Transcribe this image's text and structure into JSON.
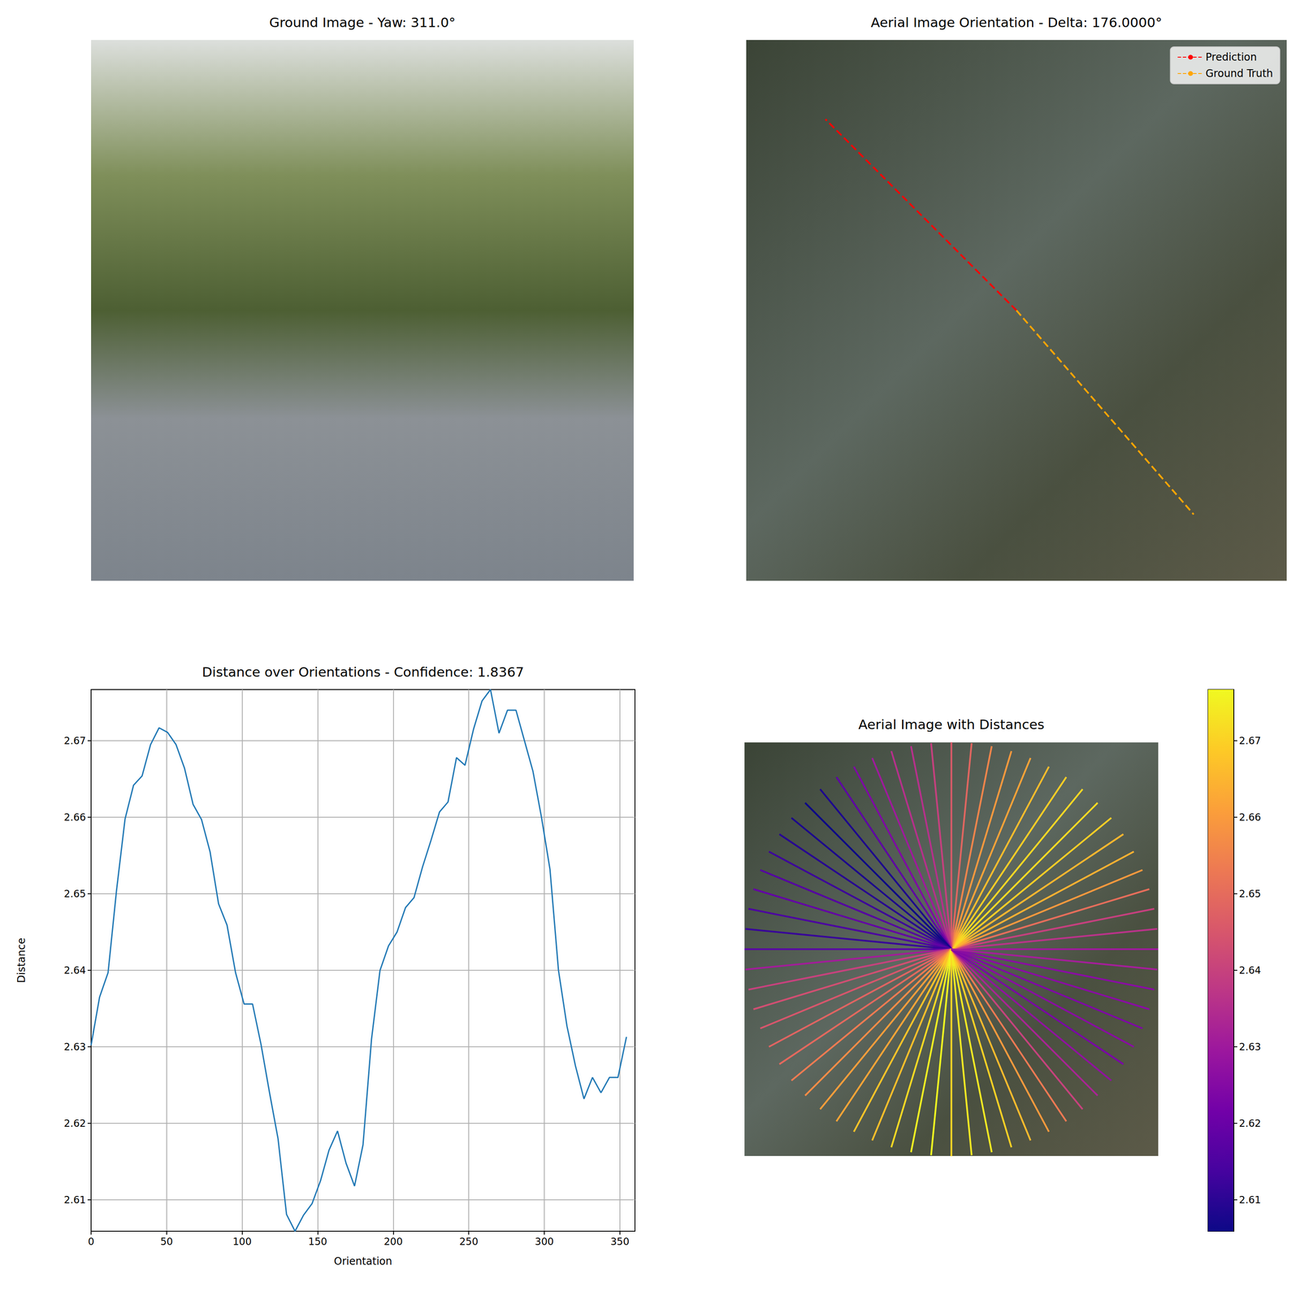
{
  "chart_data": [
    {
      "type": "image",
      "title": "Ground Image - Yaw: 311.0°"
    },
    {
      "type": "orientation",
      "title": "Aerial Image Orientation - Delta: 176.0000°",
      "legend": "upper right",
      "series": [
        {
          "name": "Prediction",
          "color": "red",
          "line_style": "dashed",
          "values": [
            135
          ]
        },
        {
          "name": "Ground Truth",
          "color": "orange",
          "line_style": "dashed",
          "values": [
            311
          ]
        }
      ]
    },
    {
      "type": "line",
      "title": "Distance over Orientations - Confidence: 1.8367",
      "x_label": "Orientation",
      "y_label": "Distance",
      "color": "#1f77b4",
      "grid": true,
      "x": [
        0,
        5.625,
        11.25,
        16.875,
        22.5,
        28.125,
        33.75,
        39.375,
        45,
        50.625,
        56.25,
        61.875,
        67.5,
        73.125,
        78.75,
        84.375,
        90,
        95.625,
        101.25,
        106.875,
        112.5,
        118.125,
        123.75,
        129.375,
        135,
        140.625,
        146.25,
        151.875,
        157.5,
        163.125,
        168.75,
        174.375,
        180,
        185.625,
        191.25,
        196.875,
        202.5,
        208.125,
        213.75,
        219.375,
        225,
        230.625,
        236.25,
        241.875,
        247.5,
        253.125,
        258.75,
        264.375,
        270,
        275.625,
        281.25,
        286.875,
        292.5,
        298.125,
        303.75,
        309.375,
        315,
        320.625,
        326.25,
        331.875,
        337.5,
        343.125,
        348.75,
        354.375
      ],
      "values": [
        2.6302,
        2.6365,
        2.6397,
        2.6505,
        2.6598,
        2.6642,
        2.6654,
        2.6695,
        2.6717,
        2.6711,
        2.6695,
        2.6664,
        2.6617,
        2.6597,
        2.6555,
        2.6487,
        2.6459,
        2.6397,
        2.6356,
        2.6356,
        2.6303,
        2.624,
        2.618,
        2.6081,
        2.6059,
        2.608,
        2.6095,
        2.6125,
        2.6165,
        2.619,
        2.6148,
        2.6118,
        2.6172,
        2.631,
        2.64,
        2.6432,
        2.645,
        2.6482,
        2.6495,
        2.6535,
        2.657,
        2.6607,
        2.662,
        2.6678,
        2.6668,
        2.6715,
        2.6752,
        2.6767,
        2.671,
        2.674,
        2.674,
        2.67,
        2.666,
        2.66,
        2.6532,
        2.64,
        2.6327,
        2.6275,
        2.6232,
        2.626,
        2.624,
        2.626,
        2.626,
        2.6313
      ],
      "xlim": [
        0,
        360
      ],
      "xticks": [
        0,
        50,
        100,
        150,
        200,
        250,
        300,
        350
      ],
      "ylim": [
        2.6059,
        2.6767
      ],
      "yticks": [
        2.61,
        2.62,
        2.63,
        2.64,
        2.65,
        2.66,
        2.67
      ]
    },
    {
      "type": "radial",
      "title": "Aerial Image with Distances",
      "x": [
        0,
        5.625,
        11.25,
        16.875,
        22.5,
        28.125,
        33.75,
        39.375,
        45,
        50.625,
        56.25,
        61.875,
        67.5,
        73.125,
        78.75,
        84.375,
        90,
        95.625,
        101.25,
        106.875,
        112.5,
        118.125,
        123.75,
        129.375,
        135,
        140.625,
        146.25,
        151.875,
        157.5,
        163.125,
        168.75,
        174.375,
        180,
        185.625,
        191.25,
        196.875,
        202.5,
        208.125,
        213.75,
        219.375,
        225,
        230.625,
        236.25,
        241.875,
        247.5,
        253.125,
        258.75,
        264.375,
        270,
        275.625,
        281.25,
        286.875,
        292.5,
        298.125,
        303.75,
        309.375,
        315,
        320.625,
        326.25,
        331.875,
        337.5,
        343.125,
        348.75,
        354.375
      ],
      "values": [
        2.6302,
        2.6365,
        2.6397,
        2.6505,
        2.6598,
        2.6642,
        2.6654,
        2.6695,
        2.6717,
        2.6711,
        2.6695,
        2.6664,
        2.6617,
        2.6597,
        2.6555,
        2.6487,
        2.6459,
        2.6397,
        2.6356,
        2.6356,
        2.6303,
        2.624,
        2.618,
        2.6081,
        2.6059,
        2.608,
        2.6095,
        2.6125,
        2.6165,
        2.619,
        2.6148,
        2.6118,
        2.6172,
        2.631,
        2.64,
        2.6432,
        2.645,
        2.6482,
        2.6495,
        2.6535,
        2.657,
        2.6607,
        2.662,
        2.6678,
        2.6668,
        2.6715,
        2.6752,
        2.6767,
        2.671,
        2.674,
        2.674,
        2.67,
        2.666,
        2.66,
        2.6532,
        2.64,
        2.6327,
        2.6275,
        2.6232,
        2.626,
        2.624,
        2.626,
        2.626,
        2.6313
      ],
      "colorbar_range": [
        2.6059,
        2.6767
      ],
      "colorbar_ticks": [
        2.61,
        2.62,
        2.63,
        2.64,
        2.65,
        2.66,
        2.67
      ]
    }
  ]
}
